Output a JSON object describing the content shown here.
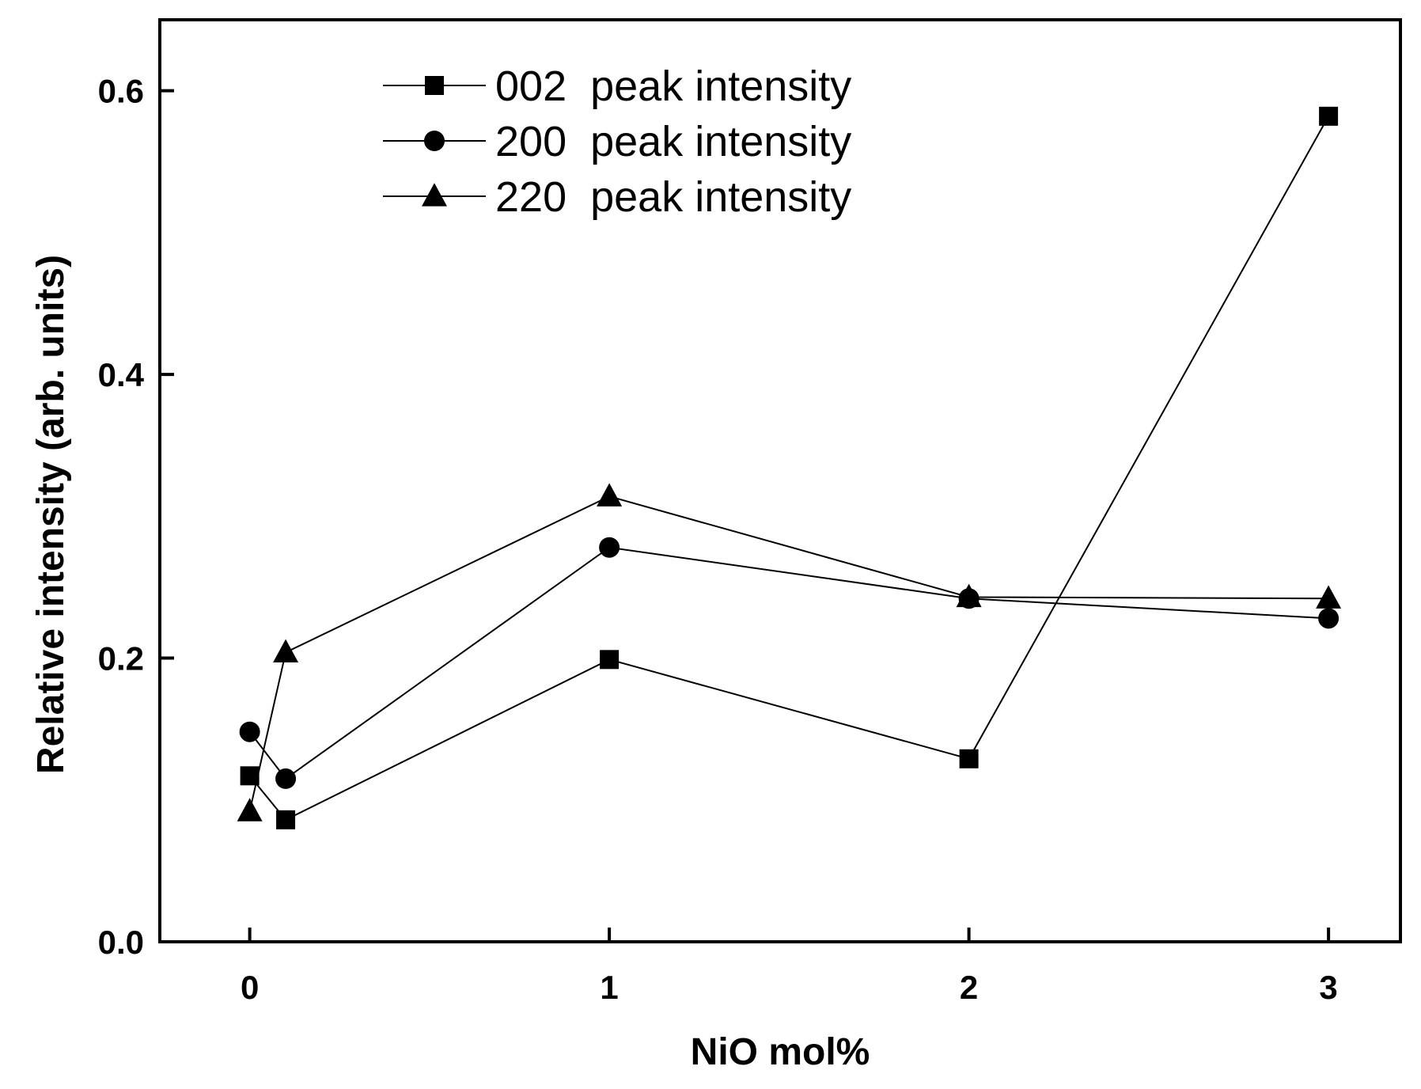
{
  "chart_data": {
    "type": "line",
    "title": "",
    "xlabel": "NiO mol%",
    "ylabel": "Relative intensity (arb. units)",
    "xlim": [
      -0.25,
      3.2
    ],
    "ylim": [
      0.0,
      0.65
    ],
    "xticks": [
      0,
      1,
      2,
      3
    ],
    "xtick_labels": [
      "0",
      "1",
      "2",
      "3"
    ],
    "yticks": [
      0.0,
      0.2,
      0.4,
      0.6
    ],
    "ytick_labels": [
      "0.0",
      "0.2",
      "0.4",
      "0.6"
    ],
    "grid": false,
    "legend_position": "top-center",
    "x": [
      0,
      0.1,
      1,
      2,
      3
    ],
    "series": [
      {
        "name": "002  peak intensity",
        "marker": "square",
        "color": "#000000",
        "values": [
          0.117,
          0.086,
          0.199,
          0.129,
          0.582
        ]
      },
      {
        "name": "200  peak intensity",
        "marker": "circle",
        "color": "#000000",
        "values": [
          0.148,
          0.115,
          0.278,
          0.242,
          0.228
        ]
      },
      {
        "name": "220  peak intensity",
        "marker": "triangle",
        "color": "#000000",
        "values": [
          0.092,
          0.204,
          0.314,
          0.243,
          0.242
        ]
      }
    ]
  }
}
